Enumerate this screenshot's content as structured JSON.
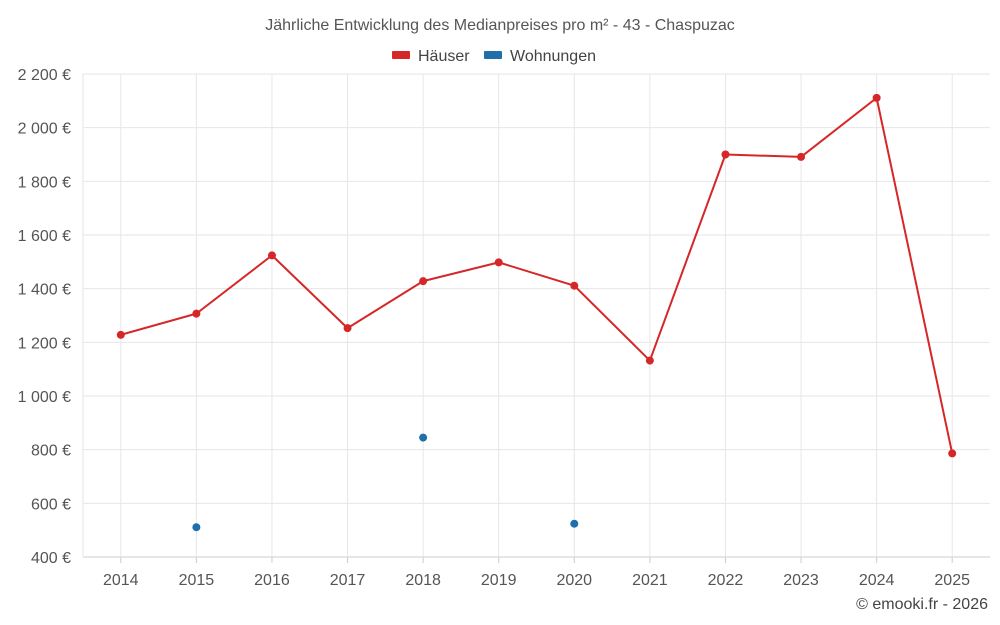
{
  "chart_data": {
    "type": "line",
    "title": "Jährliche Entwicklung des Medianpreises pro m² - 43 - Chaspuzac",
    "categories": [
      "2014",
      "2015",
      "2016",
      "2017",
      "2018",
      "2019",
      "2020",
      "2021",
      "2022",
      "2023",
      "2024",
      "2025"
    ],
    "series": [
      {
        "name": "Häuser",
        "color": "#d62728",
        "line": true,
        "values": [
          1228,
          1307,
          1524,
          1253,
          1428,
          1498,
          1411,
          1132,
          1900,
          1891,
          2111,
          786
        ]
      },
      {
        "name": "Wohnungen",
        "color": "#1f6fab",
        "line": false,
        "values": [
          null,
          511,
          null,
          null,
          845,
          null,
          524,
          null,
          null,
          null,
          null,
          null
        ]
      }
    ],
    "ylim": [
      400,
      2200
    ],
    "yticks": [
      400,
      600,
      800,
      1000,
      1200,
      1400,
      1600,
      1800,
      2000,
      2200
    ],
    "ytick_labels": [
      "400 €",
      "600 €",
      "800 €",
      "1 000 €",
      "1 200 €",
      "1 400 €",
      "1 600 €",
      "1 800 €",
      "2 000 €",
      "2 200 €"
    ],
    "xlabel": "",
    "ylabel": "",
    "grid": true,
    "legend": "top-center"
  },
  "credit": "© emooki.fr - 2026"
}
